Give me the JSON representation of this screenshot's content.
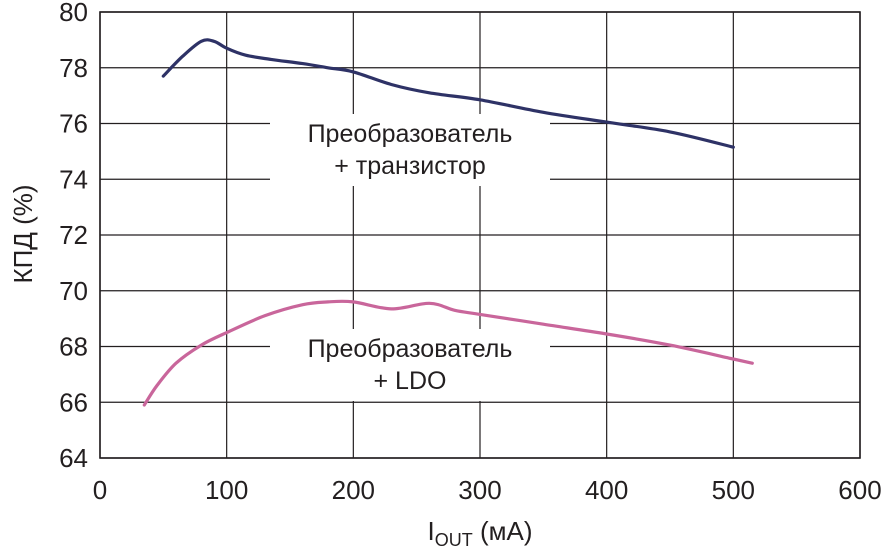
{
  "chart_data": {
    "type": "line",
    "xlim": [
      0,
      600
    ],
    "ylim": [
      64,
      80
    ],
    "x_ticks": [
      0,
      100,
      200,
      300,
      400,
      500,
      600
    ],
    "y_ticks": [
      64,
      66,
      68,
      70,
      72,
      74,
      76,
      78,
      80
    ],
    "x_tick_labels": [
      "0",
      "100",
      "200",
      "300",
      "400",
      "500",
      "600"
    ],
    "y_tick_labels": [
      "64",
      "66",
      "68",
      "70",
      "72",
      "74",
      "76",
      "78",
      "80"
    ],
    "x_label": {
      "main": "I",
      "sub": "OUT",
      "rest": " (мА)"
    },
    "ylabel": "КПД (%)",
    "grid": true,
    "series": [
      {
        "name_lines": [
          "Преобразователь",
          "+ транзистор"
        ],
        "color": "#2e3266",
        "x": [
          50,
          65,
          80,
          90,
          100,
          115,
          135,
          160,
          180,
          200,
          230,
          260,
          300,
          350,
          400,
          450,
          500
        ],
        "y": [
          77.7,
          78.4,
          78.95,
          78.95,
          78.7,
          78.45,
          78.3,
          78.15,
          78.0,
          77.85,
          77.4,
          77.1,
          76.85,
          76.4,
          76.05,
          75.7,
          75.15
        ]
      },
      {
        "name_lines": [
          "Преобразователь",
          "+ LDO"
        ],
        "color": "#c9669b",
        "x": [
          35,
          45,
          60,
          80,
          100,
          130,
          160,
          180,
          200,
          230,
          260,
          280,
          300,
          350,
          400,
          450,
          500,
          515
        ],
        "y": [
          65.9,
          66.6,
          67.4,
          68.05,
          68.5,
          69.1,
          69.5,
          69.6,
          69.6,
          69.35,
          69.55,
          69.3,
          69.15,
          68.8,
          68.45,
          68.05,
          67.55,
          67.4
        ]
      }
    ]
  }
}
